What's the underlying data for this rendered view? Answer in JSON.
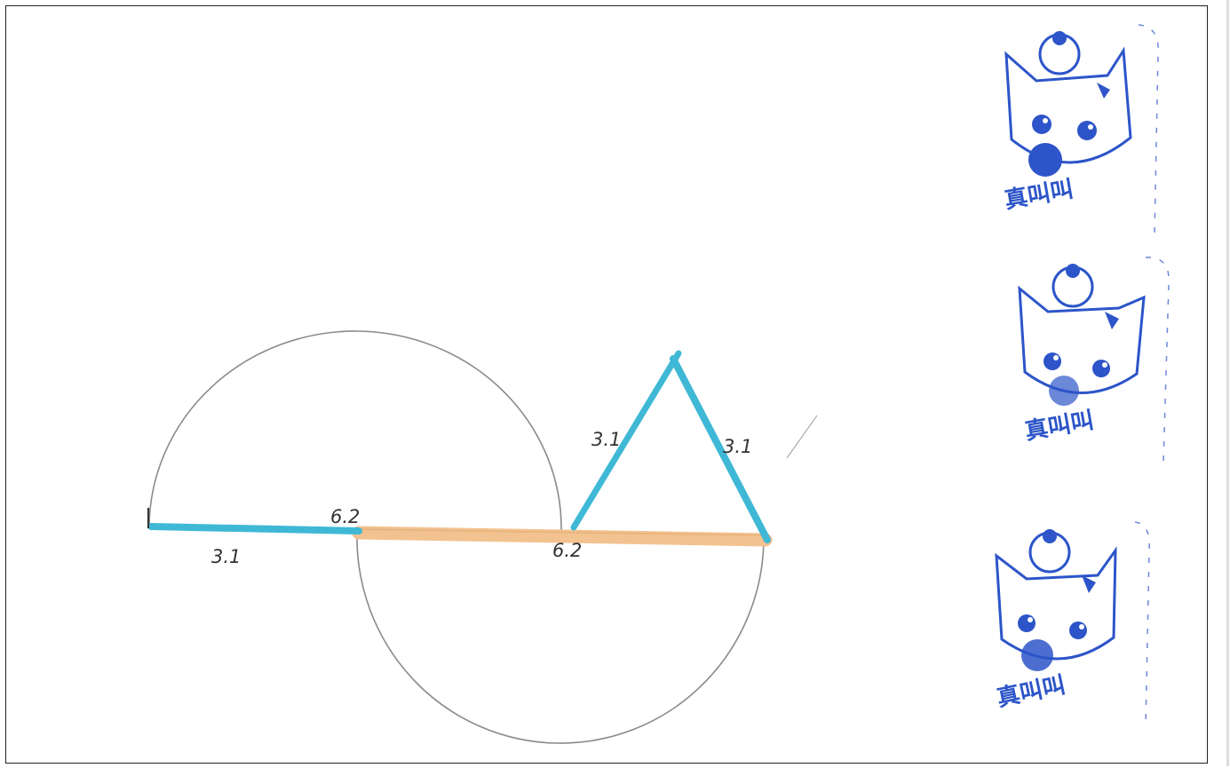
{
  "labels": {
    "left_blue_segment": "3.1",
    "left_junction": "6.2",
    "middle_junction": "6.2",
    "triangle_left_side": "3.1",
    "triangle_right_side": "3.1"
  },
  "stamps": [
    {
      "text": "真叫叫"
    },
    {
      "text": "真叫叫"
    },
    {
      "text": "真叫叫"
    }
  ],
  "colors": {
    "blue_stick": "#3fb8d6",
    "orange_stick": "#f2c290",
    "circle": "#8a8a8a",
    "stamp": "#2d55c9"
  }
}
